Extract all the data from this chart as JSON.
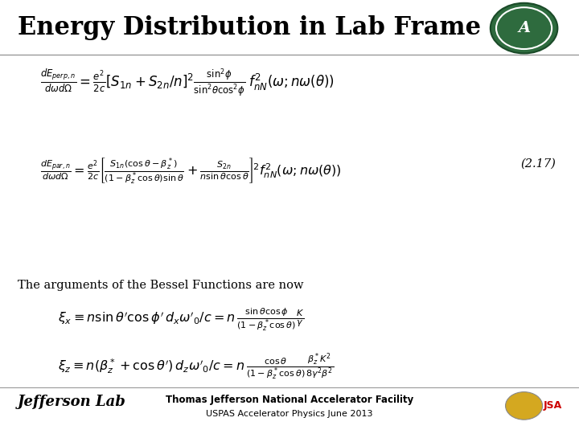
{
  "title": "Energy Distribution in Lab Frame",
  "title_fontsize": 22,
  "bg_color": "#ffffff",
  "header_line_color": "#999999",
  "footer_line_color": "#999999",
  "equation_number": "(2.17)",
  "text_body": "The arguments of the Bessel Functions are now",
  "footer_line1": "Thomas Jefferson National Accelerator Facility",
  "footer_line2": "USPAS Accelerator Physics June 2013",
  "footer_left": "Jefferson Lab",
  "eq1_fontsize": 12.0,
  "eq2_fontsize": 11.5,
  "eq3_fontsize": 11.5,
  "eq4_fontsize": 11.5
}
